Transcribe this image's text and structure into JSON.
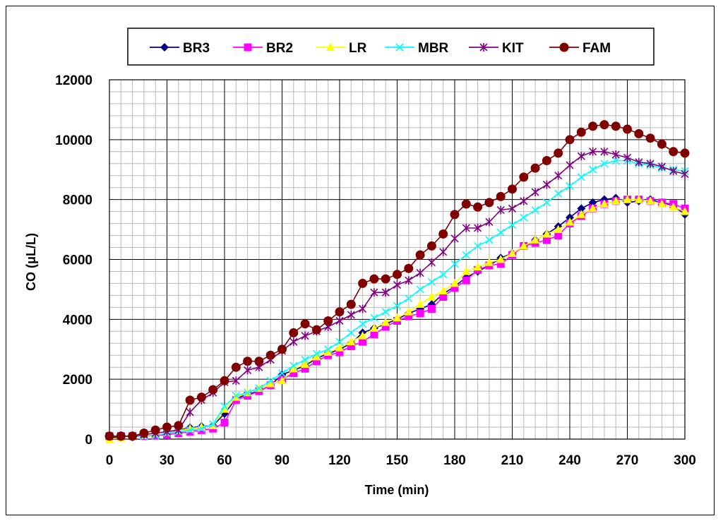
{
  "chart_data": {
    "type": "line",
    "xlabel": "Time (min)",
    "ylabel": "CO (μL/L)",
    "xlim": [
      0,
      300
    ],
    "ylim": [
      0,
      12000
    ],
    "xticks": [
      0,
      30,
      60,
      90,
      120,
      150,
      180,
      210,
      240,
      270,
      300
    ],
    "yticks": [
      0,
      2000,
      4000,
      6000,
      8000,
      10000,
      12000
    ],
    "grid": true,
    "legend_position": "top",
    "x": [
      0,
      6,
      12,
      18,
      24,
      30,
      36,
      42,
      48,
      54,
      60,
      66,
      72,
      78,
      84,
      90,
      96,
      102,
      108,
      114,
      120,
      126,
      132,
      138,
      144,
      150,
      156,
      162,
      168,
      174,
      180,
      186,
      192,
      198,
      204,
      210,
      216,
      222,
      228,
      234,
      240,
      246,
      252,
      258,
      264,
      270,
      276,
      282,
      288,
      294,
      300
    ],
    "series": [
      {
        "name": "BR3",
        "color": "#000080",
        "marker": "diamond",
        "values": [
          50,
          60,
          70,
          120,
          180,
          250,
          300,
          380,
          420,
          450,
          850,
          1350,
          1500,
          1600,
          1800,
          2150,
          2300,
          2450,
          2700,
          2850,
          3000,
          3200,
          3550,
          3700,
          3850,
          4000,
          4200,
          4350,
          4500,
          4850,
          5100,
          5400,
          5600,
          5800,
          6050,
          6200,
          6450,
          6650,
          6850,
          7100,
          7400,
          7700,
          7900,
          8000,
          8050,
          7900,
          7950,
          8000,
          7900,
          7800,
          7500
        ]
      },
      {
        "name": "BR2",
        "color": "#ff00ff",
        "marker": "square",
        "values": [
          100,
          100,
          100,
          100,
          120,
          150,
          200,
          250,
          300,
          350,
          550,
          1300,
          1450,
          1600,
          1800,
          2000,
          2200,
          2350,
          2600,
          2800,
          2900,
          3100,
          3250,
          3500,
          3750,
          3950,
          4100,
          4200,
          4350,
          4750,
          5050,
          5300,
          5650,
          5800,
          5850,
          6150,
          6450,
          6550,
          6650,
          6800,
          7200,
          7450,
          7700,
          7850,
          7950,
          8000,
          8000,
          7950,
          7900,
          7850,
          7700
        ]
      },
      {
        "name": "LR",
        "color": "#ffff00",
        "marker": "triangle",
        "values": [
          0,
          50,
          80,
          120,
          180,
          230,
          280,
          350,
          400,
          450,
          1000,
          1400,
          1550,
          1700,
          1850,
          1950,
          2350,
          2500,
          2750,
          2900,
          3050,
          3250,
          3450,
          3700,
          3900,
          4050,
          4250,
          4500,
          4750,
          4950,
          5200,
          5600,
          5750,
          5900,
          6000,
          6200,
          6450,
          6650,
          6850,
          7000,
          7250,
          7500,
          7700,
          7850,
          7950,
          8000,
          8000,
          7950,
          7850,
          7750,
          7600
        ]
      },
      {
        "name": "MBR",
        "color": "#00ffff",
        "marker": "x",
        "values": [
          100,
          100,
          100,
          100,
          120,
          200,
          250,
          300,
          350,
          500,
          1100,
          1450,
          1550,
          1700,
          1950,
          2200,
          2450,
          2650,
          2850,
          3000,
          3250,
          3550,
          3850,
          4050,
          4250,
          4450,
          4700,
          5000,
          5250,
          5500,
          5850,
          6150,
          6450,
          6650,
          6900,
          7150,
          7400,
          7650,
          7900,
          8200,
          8450,
          8750,
          9000,
          9200,
          9300,
          9300,
          9200,
          9150,
          9050,
          9000,
          8950
        ]
      },
      {
        "name": "KIT",
        "color": "#800080",
        "marker": "star",
        "values": [
          100,
          100,
          100,
          150,
          200,
          250,
          300,
          900,
          1300,
          1550,
          1900,
          1950,
          2300,
          2400,
          2650,
          2950,
          3250,
          3450,
          3600,
          3750,
          3950,
          4150,
          4350,
          4900,
          4900,
          5150,
          5300,
          5550,
          5900,
          6250,
          6700,
          7050,
          7050,
          7250,
          7650,
          7700,
          7950,
          8250,
          8500,
          8800,
          9150,
          9450,
          9600,
          9600,
          9500,
          9400,
          9250,
          9200,
          9100,
          8950,
          8850
        ]
      },
      {
        "name": "FAM",
        "color": "#800000",
        "marker": "circle",
        "values": [
          100,
          100,
          100,
          200,
          300,
          400,
          450,
          1300,
          1400,
          1650,
          1950,
          2400,
          2600,
          2600,
          2800,
          3000,
          3550,
          3850,
          3650,
          3950,
          4250,
          4500,
          5200,
          5350,
          5350,
          5500,
          5700,
          6150,
          6450,
          6850,
          7500,
          7850,
          7750,
          7900,
          8100,
          8350,
          8750,
          9050,
          9300,
          9550,
          10000,
          10250,
          10450,
          10500,
          10450,
          10350,
          10200,
          10050,
          9850,
          9600,
          9550
        ]
      }
    ]
  }
}
